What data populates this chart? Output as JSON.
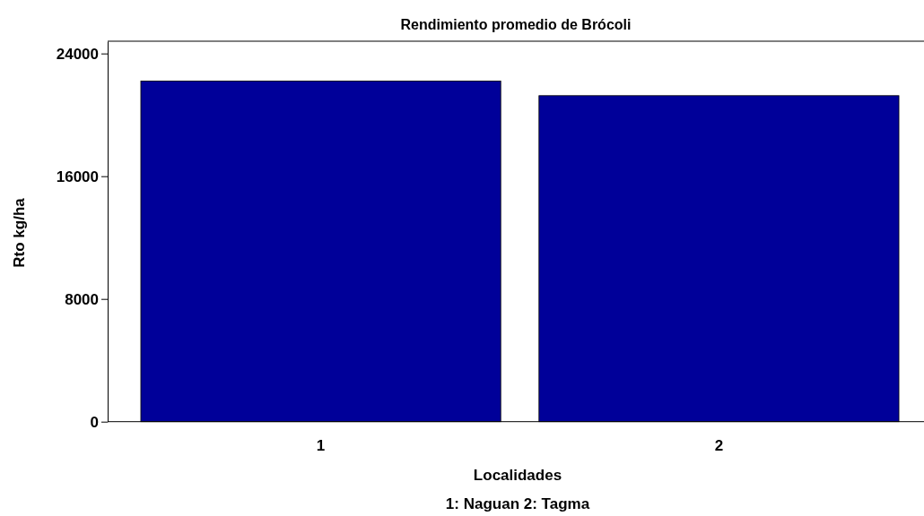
{
  "chart_data": {
    "type": "bar",
    "title": "Rendimiento promedio de Brócoli",
    "xlabel": "Localidades",
    "ylabel": "Rto kg/ha",
    "categories": [
      "1",
      "2"
    ],
    "values": [
      22200,
      21250
    ],
    "color": "#000099",
    "ylim": [
      0,
      24800
    ],
    "yticks": [
      0,
      8000,
      16000,
      24000
    ],
    "grid": false,
    "annotations": [
      "1: Naguan 2: Tagma"
    ]
  }
}
